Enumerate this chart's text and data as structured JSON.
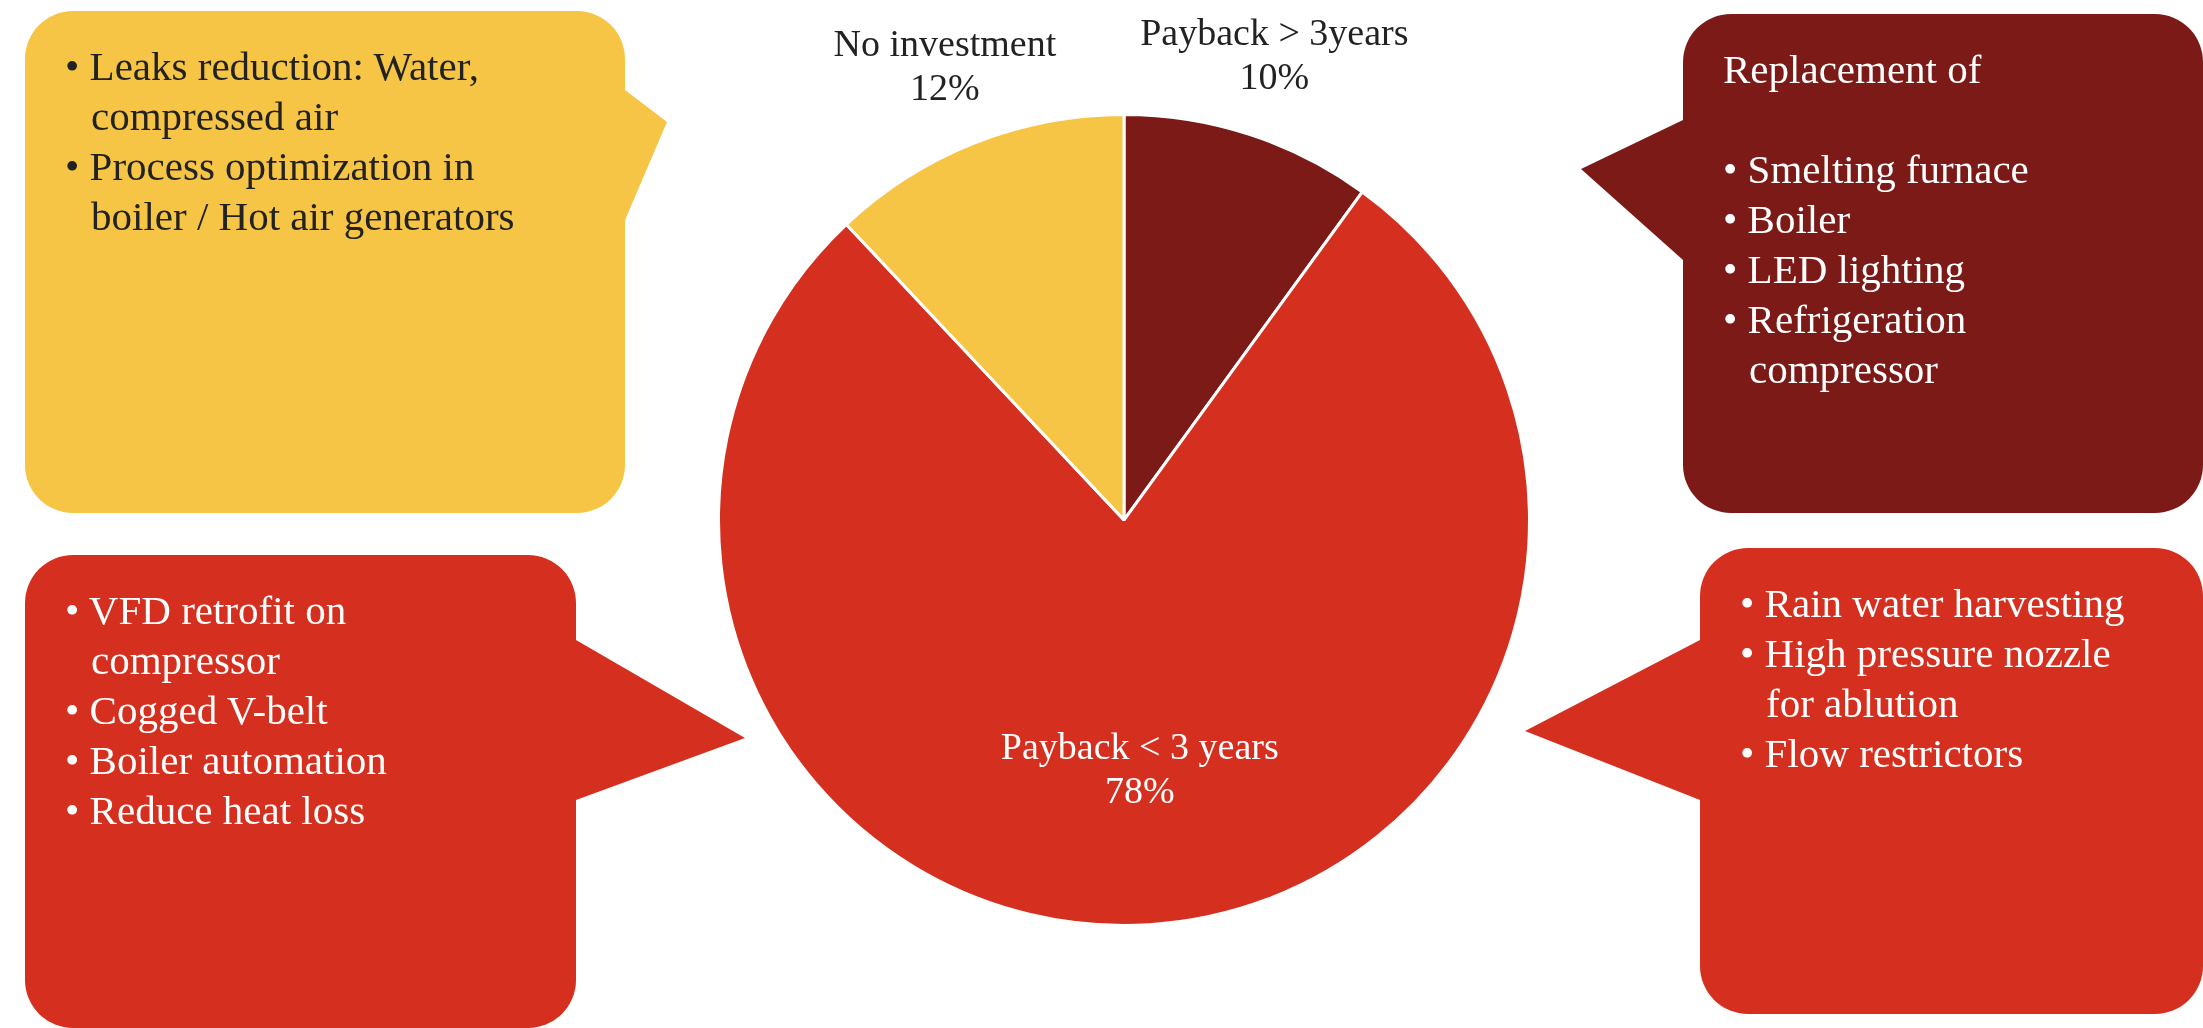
{
  "chart_data": {
    "type": "pie",
    "categories": [
      "Payback > 3years",
      "Payback < 3 years",
      "No investment"
    ],
    "values": [
      10,
      78,
      12
    ],
    "colors": [
      "#7b1a16",
      "#d5301f",
      "#f6c546"
    ],
    "value_labels": [
      "10%",
      "78%",
      "12%"
    ],
    "legend": false,
    "annotations": [
      "• Leaks reduction: Water, compressed air\n• Process optimization in boiler / Hot air generators",
      "Replacement of\n\n• Smelting furnace\n• Boiler\n• LED lighting\n• Refrigeration compressor",
      "• VFD retrofit on compressor\n• Cogged V-belt\n• Boiler automation\n• Reduce heat loss",
      "• Rain water harvesting\n• High pressure nozzle for ablution\n• Flow restrictors"
    ]
  }
}
